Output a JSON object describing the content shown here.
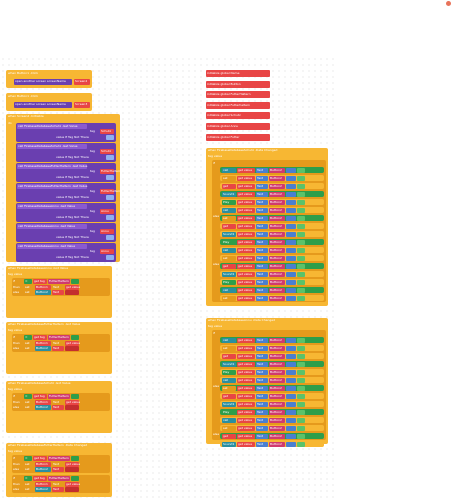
{
  "workspace": {
    "background": "#ffffff"
  },
  "colors": {
    "event": "#f7b733",
    "procedure": "#6a3fb0",
    "text": "#e84545",
    "logic": "#2e9e4a",
    "math": "#4a7fd0",
    "variable": "#e59a1c"
  },
  "events": [
    {
      "title": "when Button1 .Click",
      "body": "do  open another screen  screenName  Screen2"
    },
    {
      "title": "when Button1 .Click",
      "body": "do  open another screen  screenName  Screen3"
    },
    {
      "title": "when Screen2 .Initialize",
      "body": "do"
    },
    {
      "title": "when FirebaseDatabaseAnnu .Got Value",
      "body": "tag  value"
    },
    {
      "title": "when FirebaseDatabaseFutterHaltern .Got Value",
      "body": "tag  value"
    },
    {
      "title": "when FirebaseDatabaseSchutz .Got Value",
      "body": "tag  value"
    },
    {
      "title": "when FirebaseDatabaseFutterHaltern .Data Changed",
      "body": "tag  value"
    },
    {
      "title": "when FirebaseDatabaseSchutz .Data Changed",
      "body": "tag  value"
    },
    {
      "title": "when FirebaseDatabaseAnnu .Data Changed",
      "body": "tag  value"
    }
  ],
  "globals": [
    {
      "label": "initialize global",
      "name": "Name",
      "value": "\" \""
    },
    {
      "label": "initialize global",
      "name": "Button",
      "value": "\" \""
    },
    {
      "label": "initialize global",
      "name": "FutterHaltern",
      "value": "\" \""
    },
    {
      "label": "initialize global",
      "name": "Futterhaltern",
      "value": "\" \""
    },
    {
      "label": "initialize global",
      "name": "Schutz",
      "value": "\" \""
    },
    {
      "label": "initialize global",
      "name": "Annu",
      "value": "\" \""
    },
    {
      "label": "initialize global",
      "name": "Futter",
      "value": "\" \""
    }
  ],
  "proc_rows": [
    {
      "label": "call FirebaseDatabaseSchutz .Get Value",
      "tag": "Schutz"
    },
    {
      "label": "call FirebaseDatabaseSchutz .Get Value",
      "tag": "Schutz"
    },
    {
      "label": "call FirebaseDatabaseFutterHaltern .Get Value",
      "tag": "FutterHaltern"
    },
    {
      "label": "call FirebaseDatabaseFutterHaltern .Get Value",
      "tag": "FutterHaltern"
    },
    {
      "label": "call FirebaseDatabaseAnnu .Get Value",
      "tag": "Annu"
    },
    {
      "label": "call FirebaseDatabaseAnnu .Get Value",
      "tag": "Annu"
    },
    {
      "label": "call FirebaseDatabaseAnnu .Get Value",
      "tag": "Annu"
    }
  ],
  "labels": {
    "value_if": "value If Tag Not There",
    "tag": "tag",
    "do": "do",
    "then": "then",
    "else": "else",
    "set": "set",
    "get": "get",
    "call": "call",
    "play": "Play",
    "stop": "Stop",
    "if": "if"
  }
}
